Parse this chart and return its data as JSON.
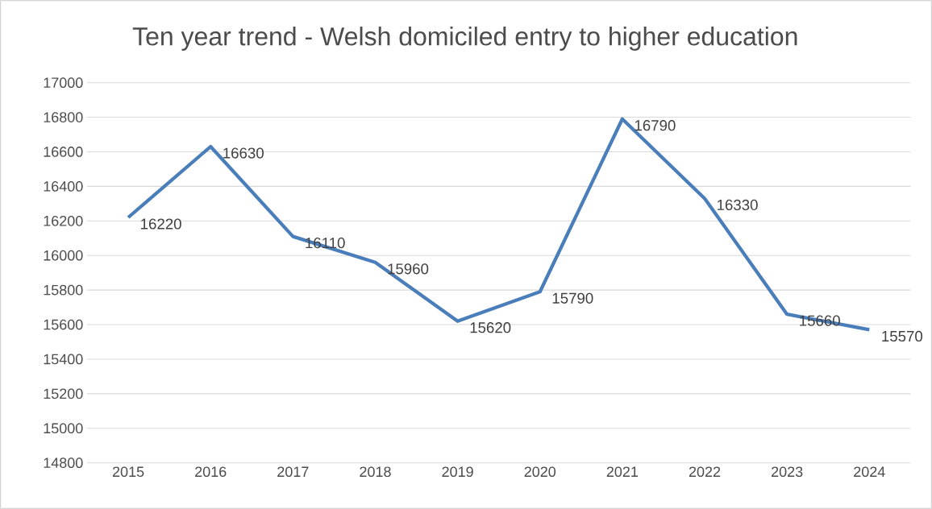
{
  "chart_data": {
    "type": "line",
    "title": "Ten year trend - Welsh domiciled entry to higher education",
    "categories": [
      "2015",
      "2016",
      "2017",
      "2018",
      "2019",
      "2020",
      "2021",
      "2022",
      "2023",
      "2024"
    ],
    "values": [
      16220,
      16630,
      16110,
      15960,
      15620,
      15790,
      16790,
      16330,
      15660,
      15570
    ],
    "color": "#4a7ebb",
    "ylim": [
      14800,
      17000
    ],
    "yticks": [
      14800,
      15000,
      15200,
      15400,
      15600,
      15800,
      16000,
      16200,
      16400,
      16600,
      16800,
      17000
    ],
    "grid": "y",
    "data_labels": true,
    "marker": "none",
    "line_style": "solid"
  }
}
